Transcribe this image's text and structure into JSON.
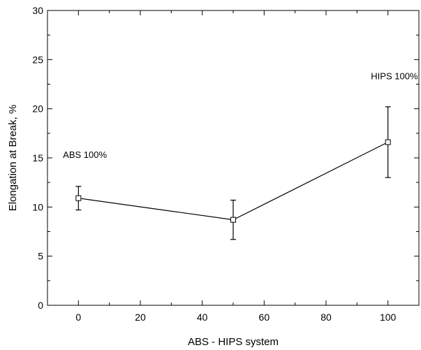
{
  "chart_data": {
    "type": "line",
    "title": "",
    "xlabel": "ABS - HIPS system",
    "ylabel": "Elongation at Break, %",
    "xlim": [
      -10,
      110
    ],
    "ylim": [
      0,
      30
    ],
    "x_ticks": [
      0,
      20,
      40,
      60,
      80,
      100
    ],
    "y_ticks": [
      0,
      5,
      10,
      15,
      20,
      25,
      30
    ],
    "grid": false,
    "series": [
      {
        "x": [
          0,
          50,
          100
        ],
        "y": [
          10.9,
          8.7,
          16.6
        ],
        "error": [
          1.2,
          2.0,
          3.6
        ],
        "marker": "open-square",
        "color": "#000000"
      }
    ],
    "annotations": [
      {
        "text": "ABS 100%",
        "x": -5,
        "y": 15
      },
      {
        "text": "HIPS 100%",
        "x": 94.5,
        "y": 23
      }
    ]
  }
}
